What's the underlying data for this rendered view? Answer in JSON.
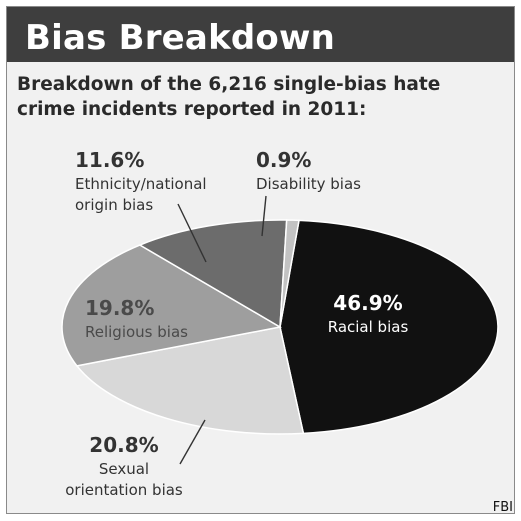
{
  "header": {
    "title": "Bias Breakdown",
    "subtitle": "Breakdown of the 6,216 single-bias hate crime incidents reported in 2011:"
  },
  "source": "FBI",
  "chart_data": {
    "type": "pie",
    "title": "Bias Breakdown",
    "subtitle": "Breakdown of the 6,216 single-bias hate crime incidents reported in 2011:",
    "categories": [
      "Racial bias",
      "Sexual orientation bias",
      "Religious bias",
      "Ethnicity/national origin bias",
      "Disability bias"
    ],
    "values": [
      46.9,
      20.8,
      19.8,
      11.6,
      0.9
    ],
    "labels": [
      {
        "pct": "46.9%",
        "lines": [
          "Racial bias"
        ],
        "color": "#111111",
        "text_color": "#ffffff"
      },
      {
        "pct": "20.8%",
        "lines": [
          "Sexual",
          "orientation bias"
        ],
        "color": "#d8d8d8",
        "text_color": "#333333"
      },
      {
        "pct": "19.8%",
        "lines": [
          "Religious bias"
        ],
        "color": "#9e9e9e",
        "text_color": "#4a4a4a"
      },
      {
        "pct": "11.6%",
        "lines": [
          "Ethnicity/national",
          "origin bias"
        ],
        "color": "#6c6c6c",
        "text_color": "#333333"
      },
      {
        "pct": "0.9%",
        "lines": [
          "Disability bias"
        ],
        "color": "#c2c2c2",
        "text_color": "#333333"
      }
    ],
    "legend": "none"
  }
}
